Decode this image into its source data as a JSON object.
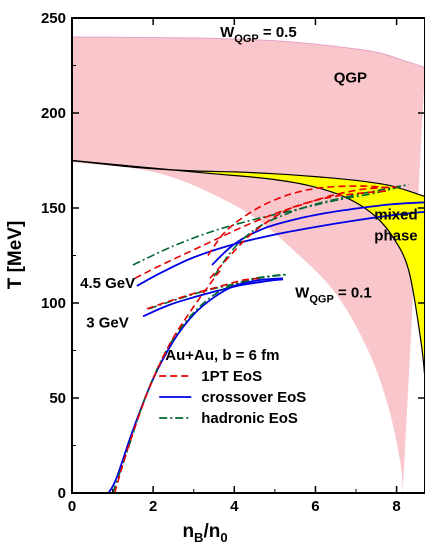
{
  "chart_data": {
    "type": "line",
    "xlabel": "n",
    "xlabel_sub": "B",
    "xlabel_tail": "/n",
    "xlabel_sub2": "0",
    "ylabel": "T [MeV]",
    "xlim": [
      0,
      8.7
    ],
    "ylim": [
      0,
      250
    ],
    "x_ticks": [
      0,
      2,
      4,
      6,
      8
    ],
    "y_ticks": [
      0,
      50,
      100,
      150,
      200,
      250
    ],
    "x_tick_labels": [
      "0",
      "2",
      "4",
      "6",
      "8"
    ],
    "y_tick_labels": [
      "0",
      "50",
      "100",
      "150",
      "200",
      "250"
    ],
    "colors": {
      "qgp_band": "#f9c6cc",
      "qgp_band_edge": "#e6a2c8",
      "mixed_phase": "#ffff00",
      "eos_1pt": "#e60000",
      "eos_crossover": "#0000e6",
      "eos_hadronic": "#006633"
    },
    "regions": [
      {
        "name": "W_QGP 0.5 to 0.1 band",
        "color_key": "qgp_band",
        "upper_boundary": [
          [
            0,
            240
          ],
          [
            3,
            239.5
          ],
          [
            5,
            238
          ],
          [
            6.5,
            235
          ],
          [
            7.5,
            232
          ],
          [
            8.2,
            227.5
          ],
          [
            8.7,
            224
          ]
        ],
        "lower_boundary": [
          [
            0,
            174
          ],
          [
            1.5,
            171
          ],
          [
            2.5,
            166
          ],
          [
            3.5,
            157
          ],
          [
            4.5,
            145
          ],
          [
            5.5,
            127
          ],
          [
            6.5,
            105
          ],
          [
            7.3,
            75
          ],
          [
            7.8,
            45
          ],
          [
            8.1,
            15
          ],
          [
            8.15,
            0
          ]
        ]
      },
      {
        "name": "mixed phase",
        "color_key": "mixed_phase",
        "upper_boundary": [
          [
            0,
            175
          ],
          [
            1.5,
            171.5
          ],
          [
            3,
            169.5
          ],
          [
            4,
            169
          ],
          [
            5,
            168
          ],
          [
            6,
            166.5
          ],
          [
            7,
            164.5
          ],
          [
            7.8,
            162
          ],
          [
            8.5,
            157.5
          ],
          [
            8.7,
            156
          ]
        ],
        "lower_boundary": [
          [
            0,
            175
          ],
          [
            2,
            171
          ],
          [
            3.5,
            168
          ],
          [
            4.8,
            165.5
          ],
          [
            5.8,
            162
          ],
          [
            6.7,
            156
          ],
          [
            7.4,
            147
          ],
          [
            7.9,
            135
          ],
          [
            8.3,
            117
          ],
          [
            8.6,
            80
          ],
          [
            8.7,
            60
          ]
        ]
      }
    ],
    "series": [
      {
        "name": "1PT EoS",
        "style": "dashed",
        "color_key": "eos_1pt",
        "group": "4.5 GeV",
        "x": [
          1.55,
          2.2,
          3.2,
          4.2,
          5.0,
          5.7,
          6.3,
          6.8,
          7.2,
          7.5,
          7.8,
          8.0
        ],
        "y": [
          113,
          120,
          130,
          140,
          147,
          152,
          156,
          158.5,
          160,
          160.5,
          161,
          161
        ]
      },
      {
        "name": "1PT EoS",
        "style": "dashed",
        "color_key": "eos_1pt",
        "group": "4.5 GeV",
        "x": [
          3.35,
          3.8,
          4.5,
          5.2,
          5.8,
          6.3,
          6.8,
          7.2,
          7.6,
          7.9
        ],
        "y": [
          125,
          138,
          149,
          156,
          159.5,
          161,
          161.5,
          161.5,
          161,
          160.5
        ]
      },
      {
        "name": "1PT EoS",
        "style": "dashed",
        "color_key": "eos_1pt",
        "group": "3 GeV",
        "x": [
          1.85,
          2.4,
          3.0,
          3.6,
          4.2,
          4.6
        ],
        "y": [
          97,
          101,
          105,
          108.5,
          112,
          113
        ]
      },
      {
        "name": "1PT EoS",
        "style": "dashed",
        "color_key": "eos_1pt",
        "group": "3 GeV",
        "x": [
          1.05,
          1.4,
          1.9,
          2.4,
          2.9,
          3.4,
          3.65
        ],
        "y": [
          0,
          25,
          55,
          78,
          95,
          110,
          117
        ]
      },
      {
        "name": "1PT EoS",
        "style": "dashed",
        "color_key": "eos_1pt",
        "group": "4.5 GeV",
        "x": [
          3.4,
          3.9,
          4.4,
          4.9,
          5.4,
          6.0,
          6.6,
          7.2,
          7.8
        ],
        "y": [
          113,
          125,
          136,
          144,
          150,
          154,
          156.5,
          158,
          159
        ]
      },
      {
        "name": "crossover EoS",
        "style": "solid",
        "color_key": "eos_crossover",
        "group": "4.5 GeV",
        "x": [
          1.6,
          2.2,
          3.0,
          4.0,
          5.0,
          6.0,
          7.0,
          8.0,
          8.7
        ],
        "y": [
          109,
          116,
          124,
          131,
          136,
          140,
          143.5,
          146.5,
          148
        ]
      },
      {
        "name": "crossover EoS",
        "style": "solid",
        "color_key": "eos_crossover",
        "group": "4.5 GeV",
        "x": [
          3.45,
          4.0,
          4.7,
          5.5,
          6.3,
          7.1,
          7.9,
          8.7
        ],
        "y": [
          120,
          131,
          139,
          144,
          147.5,
          150,
          152,
          153
        ]
      },
      {
        "name": "crossover EoS",
        "style": "solid",
        "color_key": "eos_crossover",
        "group": "3 GeV",
        "x": [
          1.75,
          2.4,
          3.0,
          3.6,
          4.2,
          4.8,
          5.2
        ],
        "y": [
          93,
          99,
          103,
          106.5,
          109.5,
          111.5,
          112.5
        ]
      },
      {
        "name": "crossover EoS",
        "style": "solid",
        "color_key": "eos_crossover",
        "group": "3 GeV",
        "x": [
          0.9,
          1.1,
          1.5,
          2.0,
          2.5,
          3.0,
          3.5,
          4.0,
          4.6,
          5.2
        ],
        "y": [
          0,
          8,
          33,
          60,
          80,
          94,
          103,
          109,
          112,
          113
        ]
      },
      {
        "name": "hadronic EoS",
        "style": "dashdot",
        "color_key": "eos_hadronic",
        "group": "4.5 GeV",
        "x": [
          1.5,
          2.5,
          3.5,
          4.5,
          5.5,
          6.5,
          7.5,
          8.3
        ],
        "y": [
          120,
          130,
          138,
          144,
          149,
          154,
          158,
          162.5
        ]
      },
      {
        "name": "hadronic EoS",
        "style": "dashdot",
        "color_key": "eos_hadronic",
        "group": "4.5 GeV",
        "x": [
          3.5,
          4.0,
          4.6,
          5.3,
          6.0,
          6.8,
          7.6,
          8.2
        ],
        "y": [
          114,
          129,
          140,
          147,
          152,
          156,
          159.5,
          162
        ]
      },
      {
        "name": "hadronic EoS",
        "style": "dashdot",
        "color_key": "eos_hadronic",
        "group": "3 GeV",
        "x": [
          1.9,
          2.6,
          3.3,
          4.0,
          4.6,
          5.3
        ],
        "y": [
          97,
          102,
          106.5,
          110,
          113,
          115
        ]
      },
      {
        "name": "hadronic EoS",
        "style": "dashdot",
        "color_key": "eos_hadronic",
        "group": "3 GeV",
        "x": [
          1.0,
          1.3,
          1.8,
          2.3,
          2.8,
          3.3,
          3.8,
          4.4,
          5.0,
          5.3
        ],
        "y": [
          0,
          18,
          50,
          74,
          90,
          101,
          108,
          112.5,
          114.5,
          115
        ]
      }
    ],
    "annotations": [
      {
        "text": "W",
        "sub": "QGP",
        "tail": " = 0.5",
        "x": 3.65,
        "y": 240
      },
      {
        "text": "QGP",
        "x": 6.45,
        "y": 216
      },
      {
        "text": "mixed",
        "x": 7.45,
        "y": 144
      },
      {
        "text": "phase",
        "x": 7.45,
        "y": 133
      },
      {
        "text": "W",
        "sub": "QGP",
        "tail": " = 0.1",
        "x": 5.5,
        "y": 103
      },
      {
        "text": "4.5 GeV",
        "x": 0.2,
        "y": 108
      },
      {
        "text": "3 GeV",
        "x": 0.35,
        "y": 87
      }
    ],
    "legend": {
      "placement": "bottom-center",
      "title": "Au+Au, b = 6 fm",
      "entries": [
        {
          "label": "1PT EoS",
          "style": "dashed",
          "color_key": "eos_1pt"
        },
        {
          "label": "crossover EoS",
          "style": "solid",
          "color_key": "eos_crossover"
        },
        {
          "label": "hadronic EoS",
          "style": "dashdot",
          "color_key": "eos_hadronic"
        }
      ]
    }
  }
}
